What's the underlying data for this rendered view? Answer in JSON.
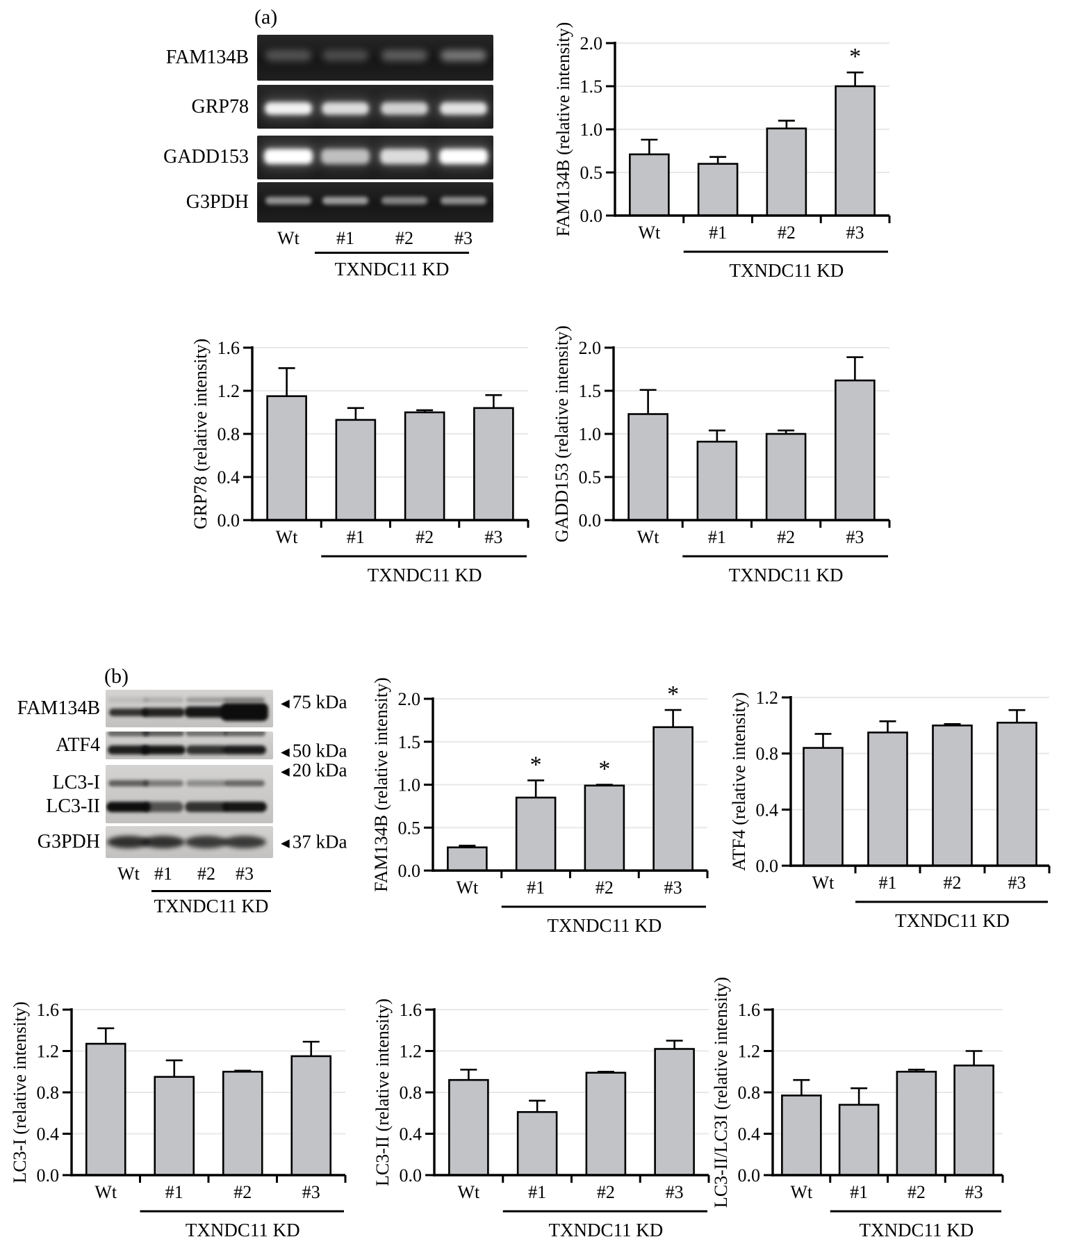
{
  "figure": {
    "background": "#ffffff"
  },
  "colors": {
    "bar_fill": "#c2c3c7",
    "bar_stroke": "#000000",
    "grid": "#e8e8e8",
    "text": "#000000",
    "gel_background": "#1b1b1b",
    "blot_background": "#c9c8c6"
  },
  "panel_a": {
    "label": "(a)",
    "gel": {
      "row_labels": [
        "FAM134B",
        "GRP78",
        "GADD153",
        "G3PDH"
      ],
      "band_intensities": [
        [
          0.3,
          0.27,
          0.36,
          0.5
        ],
        [
          0.95,
          0.85,
          0.8,
          0.88
        ],
        [
          1.0,
          0.72,
          0.85,
          1.0
        ],
        [
          0.6,
          0.65,
          0.52,
          0.58
        ]
      ],
      "lane_labels": [
        "Wt",
        "#1",
        "#2",
        "#3"
      ],
      "group_label": "TXNDC11 KD"
    }
  },
  "panel_b": {
    "label": "(b)",
    "blot": {
      "row_labels": [
        "FAM134B",
        "ATF4",
        "LC3-I",
        "LC3-II",
        "G3PDH"
      ],
      "band_intensities": [
        [
          0.8,
          0.88,
          0.95,
          1.0
        ],
        [
          0.9,
          0.95,
          0.8,
          0.92
        ],
        [
          0.6,
          0.45,
          0.35,
          0.55
        ],
        [
          1.0,
          0.62,
          0.8,
          0.95
        ],
        [
          0.85,
          0.85,
          0.8,
          0.8
        ]
      ],
      "marker_labels": [
        "75 kDa",
        "50 kDa",
        "20 kDa",
        "37 kDa"
      ],
      "lane_labels": [
        "Wt",
        "#1",
        "#2",
        "#3"
      ],
      "group_label": "TXNDC11 KD"
    }
  },
  "chart_data": [
    {
      "id": "a_fam134b",
      "panel": "a",
      "type": "bar",
      "ylabel": "FAM134B (relative intensity)",
      "categories": [
        "Wt",
        "#1",
        "#2",
        "#3"
      ],
      "values": [
        0.71,
        0.6,
        1.01,
        1.5
      ],
      "errors": [
        0.17,
        0.08,
        0.09,
        0.16
      ],
      "sig": [
        "",
        "",
        "",
        "*"
      ],
      "ymax": 2.0,
      "ytick_labels": [
        "0.0",
        "0.5",
        "1.0",
        "1.5",
        "2.0"
      ],
      "grid": true,
      "legend": false,
      "group_label": "TXNDC11 KD",
      "group_categories": [
        "#1",
        "#2",
        "#3"
      ]
    },
    {
      "id": "a_grp78",
      "panel": "a",
      "type": "bar",
      "ylabel": "GRP78 (relative intensity)",
      "categories": [
        "Wt",
        "#1",
        "#2",
        "#3"
      ],
      "values": [
        1.15,
        0.93,
        1.0,
        1.04
      ],
      "errors": [
        0.26,
        0.11,
        0.02,
        0.12
      ],
      "sig": [
        "",
        "",
        "",
        ""
      ],
      "ymax": 1.6,
      "ytick_labels": [
        "0.0",
        "0.4",
        "0.8",
        "1.2",
        "1.6"
      ],
      "grid": true,
      "legend": false,
      "group_label": "TXNDC11 KD",
      "group_categories": [
        "#1",
        "#2",
        "#3"
      ]
    },
    {
      "id": "a_gadd153",
      "panel": "a",
      "type": "bar",
      "ylabel": "GADD153 (relative intensity)",
      "categories": [
        "Wt",
        "#1",
        "#2",
        "#3"
      ],
      "values": [
        1.23,
        0.91,
        1.0,
        1.62
      ],
      "errors": [
        0.28,
        0.13,
        0.04,
        0.27
      ],
      "sig": [
        "",
        "",
        "",
        ""
      ],
      "ymax": 2.0,
      "ytick_labels": [
        "0.0",
        "0.5",
        "1.0",
        "1.5",
        "2.0"
      ],
      "grid": true,
      "legend": false,
      "group_label": "TXNDC11 KD",
      "group_categories": [
        "#1",
        "#2",
        "#3"
      ]
    },
    {
      "id": "b_fam134b",
      "panel": "b",
      "type": "bar",
      "ylabel": "FAM134B (relative intensity)",
      "categories": [
        "Wt",
        "#1",
        "#2",
        "#3"
      ],
      "values": [
        0.27,
        0.85,
        0.99,
        1.67
      ],
      "errors": [
        0.02,
        0.2,
        0.01,
        0.2
      ],
      "sig": [
        "",
        "*",
        "*",
        "*"
      ],
      "ymax": 2.0,
      "ytick_labels": [
        "0.0",
        "0.5",
        "1.0",
        "1.5",
        "2.0"
      ],
      "grid": true,
      "legend": false,
      "group_label": "TXNDC11 KD",
      "group_categories": [
        "#1",
        "#2",
        "#3"
      ]
    },
    {
      "id": "b_atf4",
      "panel": "b",
      "type": "bar",
      "ylabel": "ATF4 (relative intensity)",
      "categories": [
        "Wt",
        "#1",
        "#2",
        "#3"
      ],
      "values": [
        0.84,
        0.95,
        1.0,
        1.02
      ],
      "errors": [
        0.1,
        0.08,
        0.01,
        0.09
      ],
      "sig": [
        "",
        "",
        "",
        ""
      ],
      "ymax": 1.2,
      "ytick_labels": [
        "0.0",
        "0.4",
        "0.8",
        "1.2"
      ],
      "grid": true,
      "legend": false,
      "group_label": "TXNDC11 KD",
      "group_categories": [
        "#1",
        "#2",
        "#3"
      ]
    },
    {
      "id": "b_lc3i",
      "panel": "b",
      "type": "bar",
      "ylabel": "LC3-I (relative intensity)",
      "categories": [
        "Wt",
        "#1",
        "#2",
        "#3"
      ],
      "values": [
        1.27,
        0.95,
        1.0,
        1.15
      ],
      "errors": [
        0.15,
        0.16,
        0.01,
        0.14
      ],
      "sig": [
        "",
        "",
        "",
        ""
      ],
      "ymax": 1.6,
      "ytick_labels": [
        "0.0",
        "0.4",
        "0.8",
        "1.2",
        "1.6"
      ],
      "grid": true,
      "legend": false,
      "group_label": "TXNDC11 KD",
      "group_categories": [
        "#1",
        "#2",
        "#3"
      ]
    },
    {
      "id": "b_lc3ii",
      "panel": "b",
      "type": "bar",
      "ylabel": "LC3-II (relative intensity)",
      "categories": [
        "Wt",
        "#1",
        "#2",
        "#3"
      ],
      "values": [
        0.92,
        0.61,
        0.99,
        1.22
      ],
      "errors": [
        0.1,
        0.11,
        0.01,
        0.08
      ],
      "sig": [
        "",
        "",
        "",
        ""
      ],
      "ymax": 1.6,
      "ytick_labels": [
        "0.0",
        "0.4",
        "0.8",
        "1.2",
        "1.6"
      ],
      "grid": true,
      "legend": false,
      "group_label": "TXNDC11 KD",
      "group_categories": [
        "#1",
        "#2",
        "#3"
      ]
    },
    {
      "id": "b_ratio",
      "panel": "b",
      "type": "bar",
      "ylabel": "LC3-II/LC3I (relative intensity)",
      "categories": [
        "Wt",
        "#1",
        "#2",
        "#3"
      ],
      "values": [
        0.77,
        0.68,
        1.0,
        1.06
      ],
      "errors": [
        0.15,
        0.16,
        0.02,
        0.14
      ],
      "sig": [
        "",
        "",
        "",
        ""
      ],
      "ymax": 1.6,
      "ytick_labels": [
        "0.0",
        "0.4",
        "0.8",
        "1.2",
        "1.6"
      ],
      "grid": true,
      "legend": false,
      "group_label": "TXNDC11 KD",
      "group_categories": [
        "#1",
        "#2",
        "#3"
      ]
    }
  ]
}
